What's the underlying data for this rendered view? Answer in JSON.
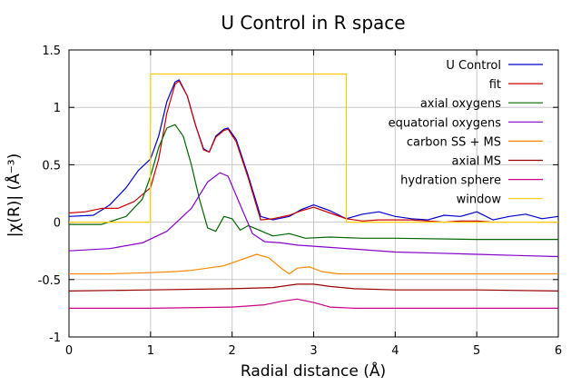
{
  "chart_data": {
    "type": "line",
    "title": "U Control in R space",
    "xlabel": "Radial distance    (Å)",
    "ylabel": "|χ(R)|    (Å⁻³)",
    "xlim": [
      0,
      6
    ],
    "ylim": [
      -1,
      1.5
    ],
    "xticks": [
      0,
      1,
      2,
      3,
      4,
      5,
      6
    ],
    "yticks": [
      -1,
      -0.5,
      0,
      0.5,
      1,
      1.5
    ],
    "xtick_labels": [
      "0",
      "1",
      "2",
      "3",
      "4",
      "5",
      "6"
    ],
    "ytick_labels": [
      "-1",
      "-0.5",
      "0",
      "0.5",
      "1",
      "1.5"
    ],
    "grid": true,
    "legend_position": "top-right",
    "series": [
      {
        "name": "U Control",
        "color": "#0000cc",
        "x": [
          0,
          0.3,
          0.5,
          0.7,
          0.85,
          1.0,
          1.1,
          1.2,
          1.3,
          1.35,
          1.45,
          1.55,
          1.65,
          1.72,
          1.8,
          1.9,
          1.95,
          2.05,
          2.2,
          2.35,
          2.5,
          2.7,
          2.85,
          3.0,
          3.2,
          3.4,
          3.6,
          3.8,
          4.0,
          4.2,
          4.4,
          4.6,
          4.8,
          5.0,
          5.2,
          5.4,
          5.6,
          5.8,
          6.0
        ],
        "y": [
          0.05,
          0.06,
          0.15,
          0.3,
          0.45,
          0.55,
          0.75,
          1.05,
          1.22,
          1.24,
          1.1,
          0.85,
          0.64,
          0.61,
          0.75,
          0.81,
          0.82,
          0.72,
          0.4,
          0.05,
          0.02,
          0.05,
          0.11,
          0.15,
          0.1,
          0.03,
          0.07,
          0.09,
          0.05,
          0.03,
          0.02,
          0.06,
          0.05,
          0.09,
          0.02,
          0.05,
          0.07,
          0.03,
          0.05
        ]
      },
      {
        "name": "fit",
        "color": "#cc0000",
        "x": [
          0,
          0.2,
          0.4,
          0.6,
          0.8,
          1.0,
          1.1,
          1.2,
          1.3,
          1.35,
          1.45,
          1.55,
          1.65,
          1.72,
          1.8,
          1.9,
          1.95,
          2.05,
          2.2,
          2.35,
          2.5,
          2.7,
          2.85,
          3.0,
          3.2,
          3.4,
          3.6,
          3.8,
          4.0,
          4.2,
          4.4,
          4.6,
          4.8,
          5.0,
          5.2
        ],
        "y": [
          0.08,
          0.09,
          0.12,
          0.12,
          0.18,
          0.3,
          0.55,
          0.95,
          1.2,
          1.23,
          1.1,
          0.85,
          0.63,
          0.61,
          0.74,
          0.8,
          0.81,
          0.7,
          0.38,
          0.02,
          0.03,
          0.06,
          0.1,
          0.13,
          0.08,
          0.03,
          0.01,
          0.02,
          0.02,
          0.02,
          0.01,
          0.0,
          0.01,
          0.01,
          0.0
        ]
      },
      {
        "name": "axial oxygens",
        "color": "#006600",
        "x": [
          0,
          0.4,
          0.7,
          0.9,
          1.0,
          1.1,
          1.2,
          1.3,
          1.4,
          1.5,
          1.6,
          1.7,
          1.8,
          1.9,
          2.0,
          2.1,
          2.2,
          2.3,
          2.5,
          2.7,
          2.9,
          3.2,
          3.6,
          4.0,
          5.0,
          6.0
        ],
        "y": [
          -0.02,
          -0.02,
          0.05,
          0.2,
          0.4,
          0.65,
          0.82,
          0.85,
          0.75,
          0.5,
          0.2,
          -0.05,
          -0.08,
          0.05,
          0.03,
          -0.07,
          -0.03,
          -0.06,
          -0.12,
          -0.1,
          -0.14,
          -0.13,
          -0.14,
          -0.14,
          -0.15,
          -0.15
        ]
      },
      {
        "name": "equatorial oxygens",
        "color": "#8800cc",
        "x": [
          0,
          0.5,
          0.9,
          1.2,
          1.5,
          1.7,
          1.85,
          1.95,
          2.1,
          2.25,
          2.4,
          2.6,
          2.8,
          3.2,
          3.6,
          4.0,
          4.5,
          5.0,
          5.5,
          6.0
        ],
        "y": [
          -0.25,
          -0.23,
          -0.18,
          -0.08,
          0.12,
          0.35,
          0.43,
          0.4,
          0.15,
          -0.1,
          -0.17,
          -0.18,
          -0.2,
          -0.22,
          -0.24,
          -0.26,
          -0.27,
          -0.28,
          -0.29,
          -0.3
        ]
      },
      {
        "name": "carbon SS + MS",
        "color": "#ff8800",
        "x": [
          0,
          0.5,
          1.0,
          1.3,
          1.5,
          1.7,
          1.9,
          2.1,
          2.3,
          2.45,
          2.6,
          2.7,
          2.8,
          2.95,
          3.1,
          3.3,
          3.6,
          4.0,
          5.0,
          6.0
        ],
        "y": [
          -0.45,
          -0.45,
          -0.44,
          -0.43,
          -0.42,
          -0.4,
          -0.38,
          -0.33,
          -0.28,
          -0.31,
          -0.4,
          -0.45,
          -0.4,
          -0.39,
          -0.43,
          -0.45,
          -0.45,
          -0.45,
          -0.45,
          -0.45
        ]
      },
      {
        "name": "axial MS",
        "color": "#990000",
        "x": [
          0,
          1.0,
          2.0,
          2.5,
          2.8,
          3.0,
          3.2,
          3.5,
          4.0,
          5.0,
          6.0
        ],
        "y": [
          -0.6,
          -0.59,
          -0.58,
          -0.57,
          -0.54,
          -0.54,
          -0.56,
          -0.58,
          -0.59,
          -0.59,
          -0.6
        ]
      },
      {
        "name": "hydration sphere",
        "color": "#cc0088",
        "x": [
          0,
          1.0,
          2.0,
          2.4,
          2.6,
          2.8,
          3.0,
          3.2,
          3.5,
          4.0,
          5.0,
          6.0
        ],
        "y": [
          -0.75,
          -0.75,
          -0.74,
          -0.72,
          -0.69,
          -0.67,
          -0.7,
          -0.74,
          -0.75,
          -0.75,
          -0.75,
          -0.75
        ]
      },
      {
        "name": "window",
        "color": "#ffcc00",
        "x": [
          0,
          0.999,
          1.0,
          3.4,
          3.401,
          6.0
        ],
        "y": [
          0,
          0,
          1.29,
          1.29,
          0,
          0
        ]
      }
    ]
  }
}
